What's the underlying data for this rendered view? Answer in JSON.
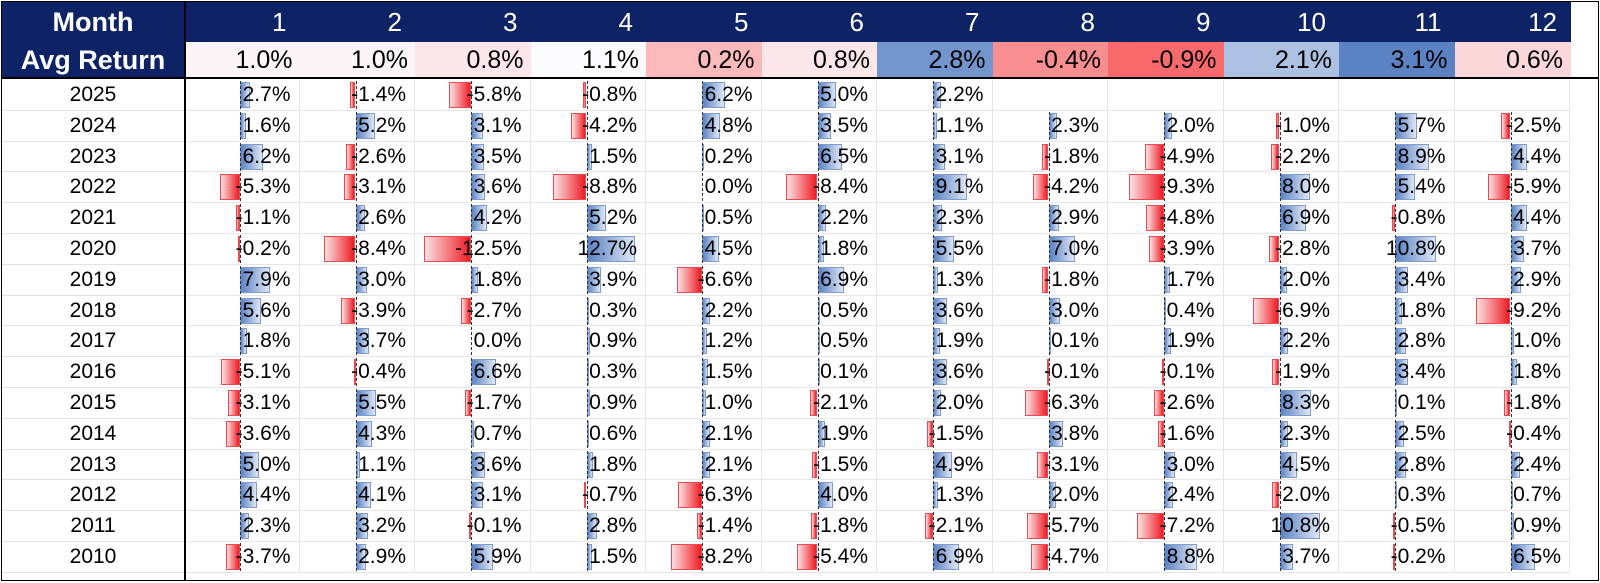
{
  "chart_data": {
    "type": "table",
    "row_header_label": "Month",
    "avg_label": "Avg Return",
    "months": [
      "1",
      "2",
      "3",
      "4",
      "5",
      "6",
      "7",
      "8",
      "9",
      "10",
      "11",
      "12"
    ],
    "avg_returns": [
      "1.0%",
      "1.0%",
      "0.8%",
      "1.1%",
      "0.2%",
      "0.8%",
      "2.8%",
      "-0.4%",
      "-0.9%",
      "2.1%",
      "3.1%",
      "0.6%"
    ],
    "avg_values": [
      1.0,
      1.0,
      0.8,
      1.1,
      0.2,
      0.8,
      2.8,
      -0.4,
      -0.9,
      2.1,
      3.1,
      0.6
    ],
    "years": [
      "2025",
      "2024",
      "2023",
      "2022",
      "2021",
      "2020",
      "2019",
      "2018",
      "2017",
      "2016",
      "2015",
      "2014",
      "2013",
      "2012",
      "2011",
      "2010"
    ],
    "returns": [
      [
        "2.7%",
        "-1.4%",
        "-5.8%",
        "-0.8%",
        "6.2%",
        "5.0%",
        "2.2%",
        "",
        "",
        "",
        "",
        ""
      ],
      [
        "1.6%",
        "5.2%",
        "3.1%",
        "-4.2%",
        "4.8%",
        "3.5%",
        "1.1%",
        "2.3%",
        "2.0%",
        "-1.0%",
        "5.7%",
        "-2.5%"
      ],
      [
        "6.2%",
        "-2.6%",
        "3.5%",
        "1.5%",
        "0.2%",
        "6.5%",
        "3.1%",
        "-1.8%",
        "-4.9%",
        "-2.2%",
        "8.9%",
        "4.4%"
      ],
      [
        "-5.3%",
        "-3.1%",
        "3.6%",
        "-8.8%",
        "0.0%",
        "-8.4%",
        "9.1%",
        "-4.2%",
        "-9.3%",
        "8.0%",
        "5.4%",
        "-5.9%"
      ],
      [
        "-1.1%",
        "2.6%",
        "4.2%",
        "5.2%",
        "0.5%",
        "2.2%",
        "2.3%",
        "2.9%",
        "-4.8%",
        "6.9%",
        "-0.8%",
        "4.4%"
      ],
      [
        "-0.2%",
        "-8.4%",
        "-12.5%",
        "12.7%",
        "4.5%",
        "1.8%",
        "5.5%",
        "7.0%",
        "-3.9%",
        "-2.8%",
        "10.8%",
        "3.7%"
      ],
      [
        "7.9%",
        "3.0%",
        "1.8%",
        "3.9%",
        "-6.6%",
        "6.9%",
        "1.3%",
        "-1.8%",
        "1.7%",
        "2.0%",
        "3.4%",
        "2.9%"
      ],
      [
        "5.6%",
        "-3.9%",
        "-2.7%",
        "0.3%",
        "2.2%",
        "0.5%",
        "3.6%",
        "3.0%",
        "0.4%",
        "-6.9%",
        "1.8%",
        "-9.2%"
      ],
      [
        "1.8%",
        "3.7%",
        "0.0%",
        "0.9%",
        "1.2%",
        "0.5%",
        "1.9%",
        "0.1%",
        "1.9%",
        "2.2%",
        "2.8%",
        "1.0%"
      ],
      [
        "-5.1%",
        "-0.4%",
        "6.6%",
        "0.3%",
        "1.5%",
        "0.1%",
        "3.6%",
        "-0.1%",
        "-0.1%",
        "-1.9%",
        "3.4%",
        "1.8%"
      ],
      [
        "-3.1%",
        "5.5%",
        "-1.7%",
        "0.9%",
        "1.0%",
        "-2.1%",
        "2.0%",
        "-6.3%",
        "-2.6%",
        "8.3%",
        "0.1%",
        "-1.8%"
      ],
      [
        "-3.6%",
        "4.3%",
        "0.7%",
        "0.6%",
        "2.1%",
        "1.9%",
        "-1.5%",
        "3.8%",
        "-1.6%",
        "2.3%",
        "2.5%",
        "-0.4%"
      ],
      [
        "5.0%",
        "1.1%",
        "3.6%",
        "1.8%",
        "2.1%",
        "-1.5%",
        "4.9%",
        "-3.1%",
        "3.0%",
        "4.5%",
        "2.8%",
        "2.4%"
      ],
      [
        "4.4%",
        "4.1%",
        "3.1%",
        "-0.7%",
        "-6.3%",
        "4.0%",
        "1.3%",
        "2.0%",
        "2.4%",
        "-2.0%",
        "0.3%",
        "0.7%"
      ],
      [
        "2.3%",
        "3.2%",
        "-0.1%",
        "2.8%",
        "-1.4%",
        "-1.8%",
        "-2.1%",
        "-5.7%",
        "-7.2%",
        "10.8%",
        "-0.5%",
        "0.9%"
      ],
      [
        "-3.7%",
        "2.9%",
        "5.9%",
        "1.5%",
        "-8.2%",
        "-5.4%",
        "6.9%",
        "-4.7%",
        "8.8%",
        "3.7%",
        "-0.2%",
        "6.5%"
      ]
    ],
    "colors": {
      "header_bg": "#0e2366",
      "header_text": "#ffffff",
      "positive_bar": "#5b83c4",
      "negative_bar": "#ee1c25",
      "avg_positive_strong": "#5b83c4",
      "avg_negative_strong": "#f8696b"
    }
  }
}
